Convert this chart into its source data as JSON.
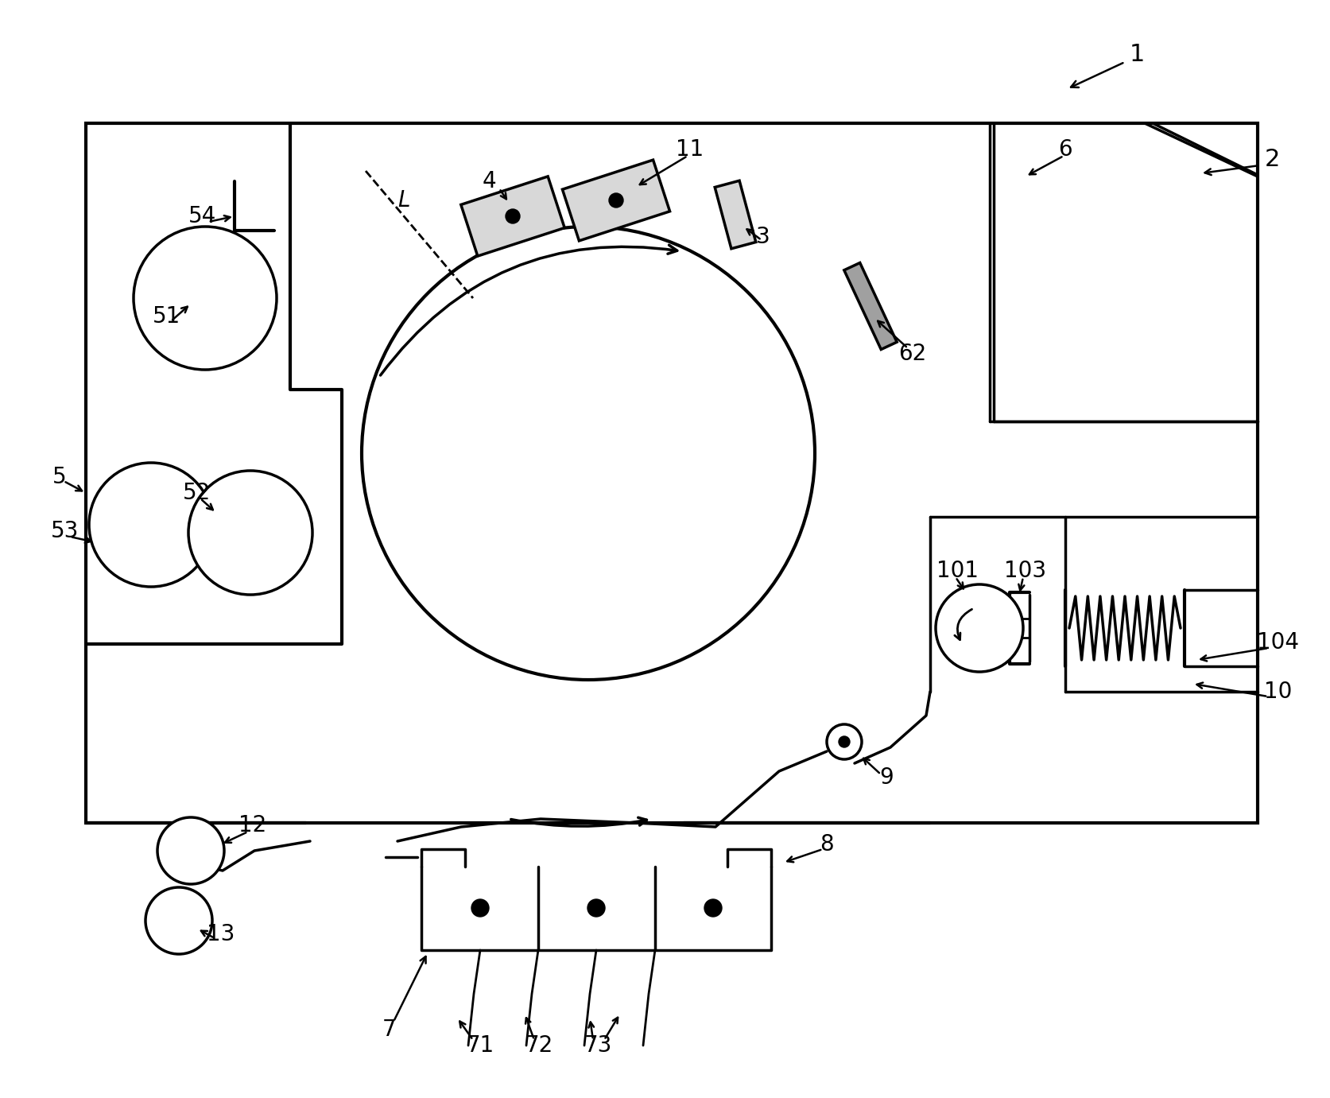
{
  "bg_color": "#ffffff",
  "line_color": "#000000",
  "fig_width": 16.73,
  "fig_height": 13.81
}
